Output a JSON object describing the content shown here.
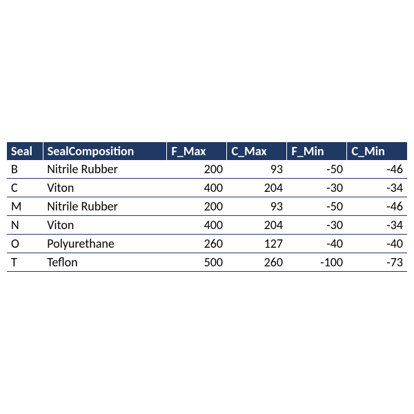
{
  "table": {
    "type": "table",
    "header_bg": "#1f3864",
    "header_fg": "#ffffff",
    "row_border_color": "#1f3864",
    "header_divider_color": "#ffffff",
    "font_family": "Calibri",
    "font_size": 18,
    "columns": [
      {
        "key": "seal",
        "label": "Seal",
        "width": "9%",
        "align": "left"
      },
      {
        "key": "comp",
        "label": "SealComposition",
        "width": "31%",
        "align": "left"
      },
      {
        "key": "fmax",
        "label": "F_Max",
        "width": "15%",
        "align": "right"
      },
      {
        "key": "cmax",
        "label": "C_Max",
        "width": "15%",
        "align": "right"
      },
      {
        "key": "fmin",
        "label": "F_Min",
        "width": "15%",
        "align": "right"
      },
      {
        "key": "cmin",
        "label": "C_Min",
        "width": "15%",
        "align": "right"
      }
    ],
    "rows": [
      {
        "seal": "B",
        "comp": "Nitrile Rubber",
        "fmax": "200",
        "cmax": "93",
        "fmin": "-50",
        "cmin": "-46"
      },
      {
        "seal": "C",
        "comp": "Viton",
        "fmax": "400",
        "cmax": "204",
        "fmin": "-30",
        "cmin": "-34"
      },
      {
        "seal": "M",
        "comp": "Nitrile Rubber",
        "fmax": "200",
        "cmax": "93",
        "fmin": "-50",
        "cmin": "-46"
      },
      {
        "seal": "N",
        "comp": "Viton",
        "fmax": "400",
        "cmax": "204",
        "fmin": "-30",
        "cmin": "-34"
      },
      {
        "seal": "O",
        "comp": "Polyurethane",
        "fmax": "260",
        "cmax": "127",
        "fmin": "-40",
        "cmin": "-40"
      },
      {
        "seal": "T",
        "comp": "Teflon",
        "fmax": "500",
        "cmax": "260",
        "fmin": "-100",
        "cmin": "-73"
      }
    ]
  }
}
